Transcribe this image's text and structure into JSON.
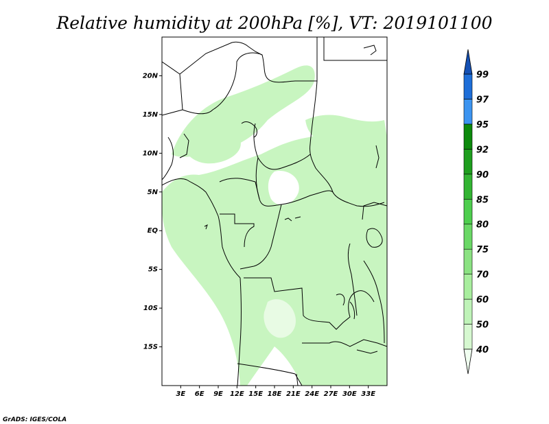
{
  "title": "Relative humidity at 200hPa [%], VT: 2019101100",
  "credit": "GrADS: IGES/COLA",
  "map": {
    "lon_range": [
      0,
      36
    ],
    "lat_range": [
      -20,
      25
    ],
    "lon_ticks": [
      "3E",
      "6E",
      "9E",
      "12E",
      "15E",
      "18E",
      "21E",
      "24E",
      "27E",
      "30E",
      "33E"
    ],
    "lat_ticks": [
      "20N",
      "15N",
      "10N",
      "5N",
      "EQ",
      "5S",
      "10S",
      "15S"
    ],
    "field": "relative humidity",
    "field_color": "#c8f5c0"
  },
  "colorbar": {
    "labels": [
      "40",
      "50",
      "60",
      "70",
      "75",
      "80",
      "85",
      "90",
      "92",
      "95",
      "97",
      "99"
    ],
    "colors": [
      "#f0fff0",
      "#d6f8d0",
      "#bff3b8",
      "#a8ee9e",
      "#8be282",
      "#6ad866",
      "#4ece4e",
      "#32b432",
      "#1e9e1e",
      "#0c8a0c",
      "#3c94f0",
      "#1e6ed8",
      "#1450b4"
    ]
  }
}
